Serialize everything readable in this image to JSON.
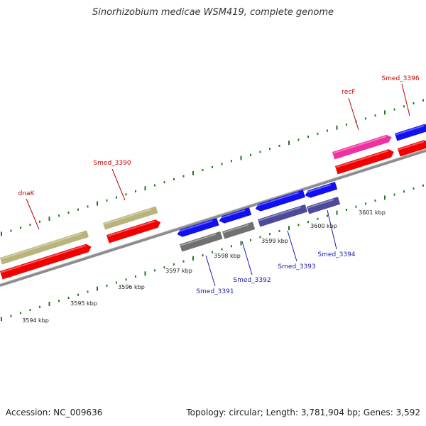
{
  "title": "Sinorhizobium medicae WSM419, complete genome",
  "footer": {
    "accession": "Accession: NC_009636",
    "summary": "Topology: circular; Length: 3,781,904 bp; Genes: 3,592"
  },
  "colors": {
    "backbone": "#8c8c8c",
    "tick": "#1e7a1e",
    "fwd_label": "#c00000",
    "rev_label": "#1a1aa8",
    "red": "#f20000",
    "olive": "#b8b47a",
    "blue": "#1010f0",
    "gray": "#707070",
    "purple": "#4e4a9a",
    "pink": "#f030a0"
  },
  "ticks": [
    "3594 kbp",
    "3595 kbp",
    "3596 kbp",
    "3597 kbp",
    "3598 kbp",
    "3599 kbp",
    "3600 kbp",
    "3601 kbp"
  ],
  "labels": {
    "forward": [
      "dnaK",
      "Smed_3390",
      "recF",
      "Smed_3396"
    ],
    "reverse": [
      "Smed_3391",
      "Smed_3392",
      "Smed_3393",
      "Smed_3394"
    ]
  }
}
